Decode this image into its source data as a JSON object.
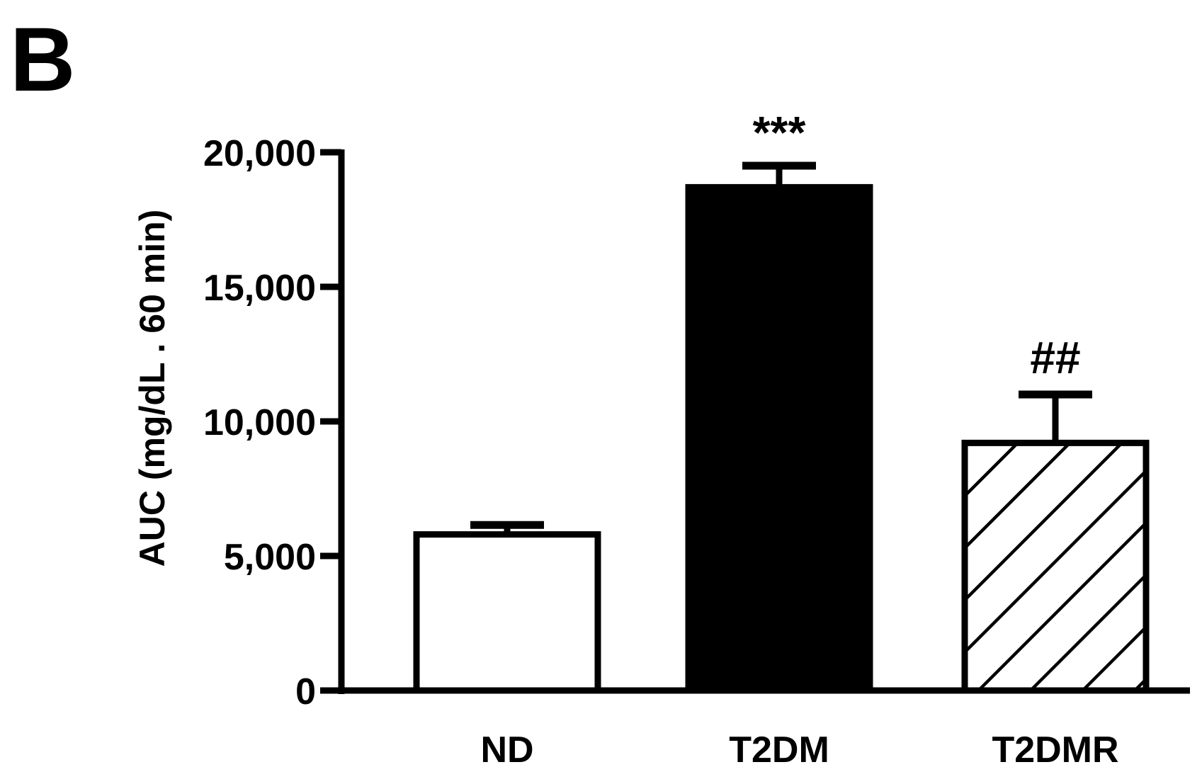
{
  "panel_label": "B",
  "chart_data": {
    "type": "bar",
    "categories": [
      "ND",
      "T2DM",
      "T2DMR"
    ],
    "values": [
      5800,
      18700,
      9200
    ],
    "errors": [
      350,
      800,
      1800
    ],
    "annotations": [
      "",
      "***",
      "##"
    ],
    "fills": [
      "white",
      "black",
      "hatch"
    ],
    "ylabel": "AUC (mg/dL . 60 min)",
    "ylim": [
      0,
      20000
    ],
    "yticks": [
      0,
      5000,
      10000,
      15000,
      20000
    ],
    "ytick_labels": [
      "0",
      "5,000",
      "10,000",
      "15,000",
      "20,000"
    ],
    "grid": false
  }
}
